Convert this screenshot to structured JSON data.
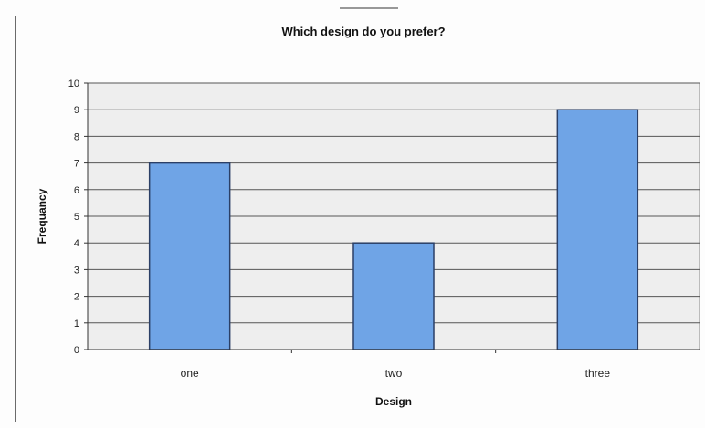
{
  "chart_data": {
    "type": "bar",
    "title": "Which design do you prefer?",
    "xlabel": "Design",
    "ylabel": "Frequancy",
    "categories": [
      "one",
      "two",
      "three"
    ],
    "values": [
      7,
      4,
      9
    ],
    "ylim": [
      0,
      10
    ],
    "yticks": [
      "0",
      "1",
      "2",
      "3",
      "4",
      "5",
      "6",
      "7",
      "8",
      "9",
      "10"
    ],
    "grid": true,
    "legend": "none",
    "colors": {
      "bar_fill": "#6fa4e6",
      "bar_stroke": "#2b3f66",
      "plot_bg": "#eeeeee",
      "gridline": "#555555"
    }
  }
}
